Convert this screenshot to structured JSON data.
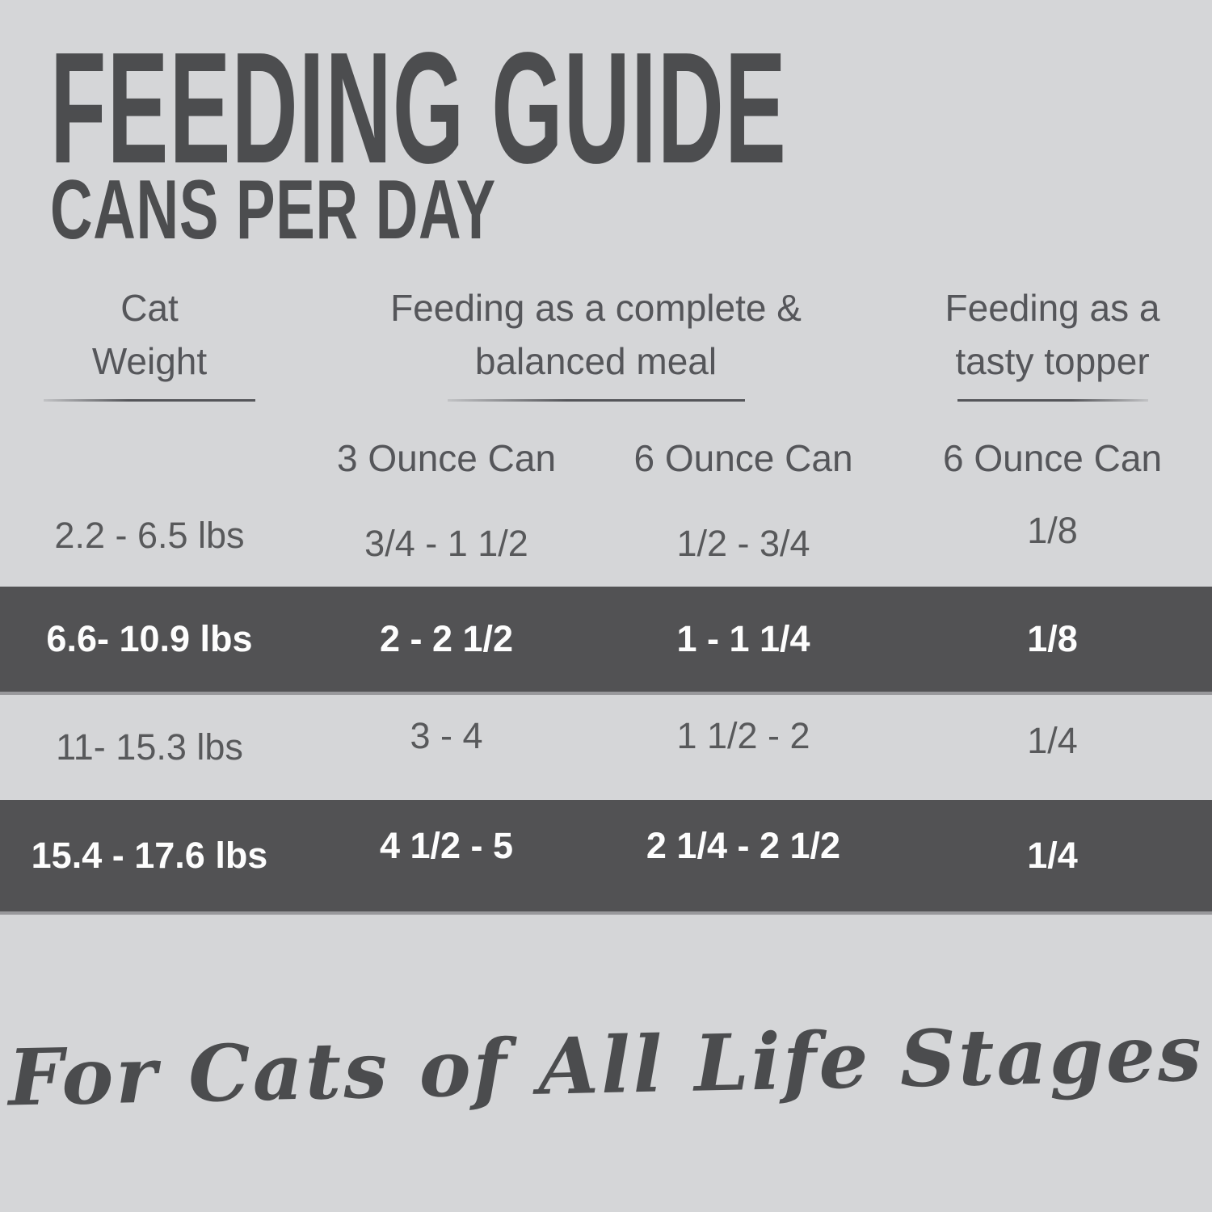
{
  "title": "FEEDING GUIDE",
  "subtitle": "CANS PER DAY",
  "table": {
    "header_groups": [
      {
        "line1": "Cat",
        "line2": "Weight"
      },
      {
        "line1": "Feeding as a complete &",
        "line2": "balanced meal"
      },
      {
        "line1": "Feeding as a",
        "line2": "tasty topper"
      }
    ],
    "subheaders": [
      "3 Ounce Can",
      "6 Ounce Can",
      "6 Ounce Can"
    ],
    "rows": [
      {
        "weight": "2.2 - 6.5 lbs",
        "meal_3oz_can": "3/4 - 1 1/2",
        "meal_6oz_can": "1/2 - 3/4",
        "topper_6oz_can": "1/8",
        "highlighted": false
      },
      {
        "weight": "6.6- 10.9 lbs",
        "meal_3oz_can": "2 - 2 1/2",
        "meal_6oz_can": "1 - 1 1/4",
        "topper_6oz_can": "1/8",
        "highlighted": true
      },
      {
        "weight": "11- 15.3 lbs",
        "meal_3oz_can": "3 - 4",
        "meal_6oz_can": "1 1/2 - 2",
        "topper_6oz_can": "1/4",
        "highlighted": false
      },
      {
        "weight": "15.4 - 17.6 lbs",
        "meal_3oz_can": "4 1/2 - 5",
        "meal_6oz_can": "2 1/4 - 2 1/2",
        "topper_6oz_can": "1/4",
        "highlighted": true
      }
    ]
  },
  "footer_tagline": "For Cats of All Life Stages",
  "colors": {
    "background": "#d5d6d8",
    "title_ink": "#4c4d4f",
    "table_text": "#58595b",
    "highlight_row_background": "#525254",
    "highlight_row_text": "#fdfdfd"
  }
}
